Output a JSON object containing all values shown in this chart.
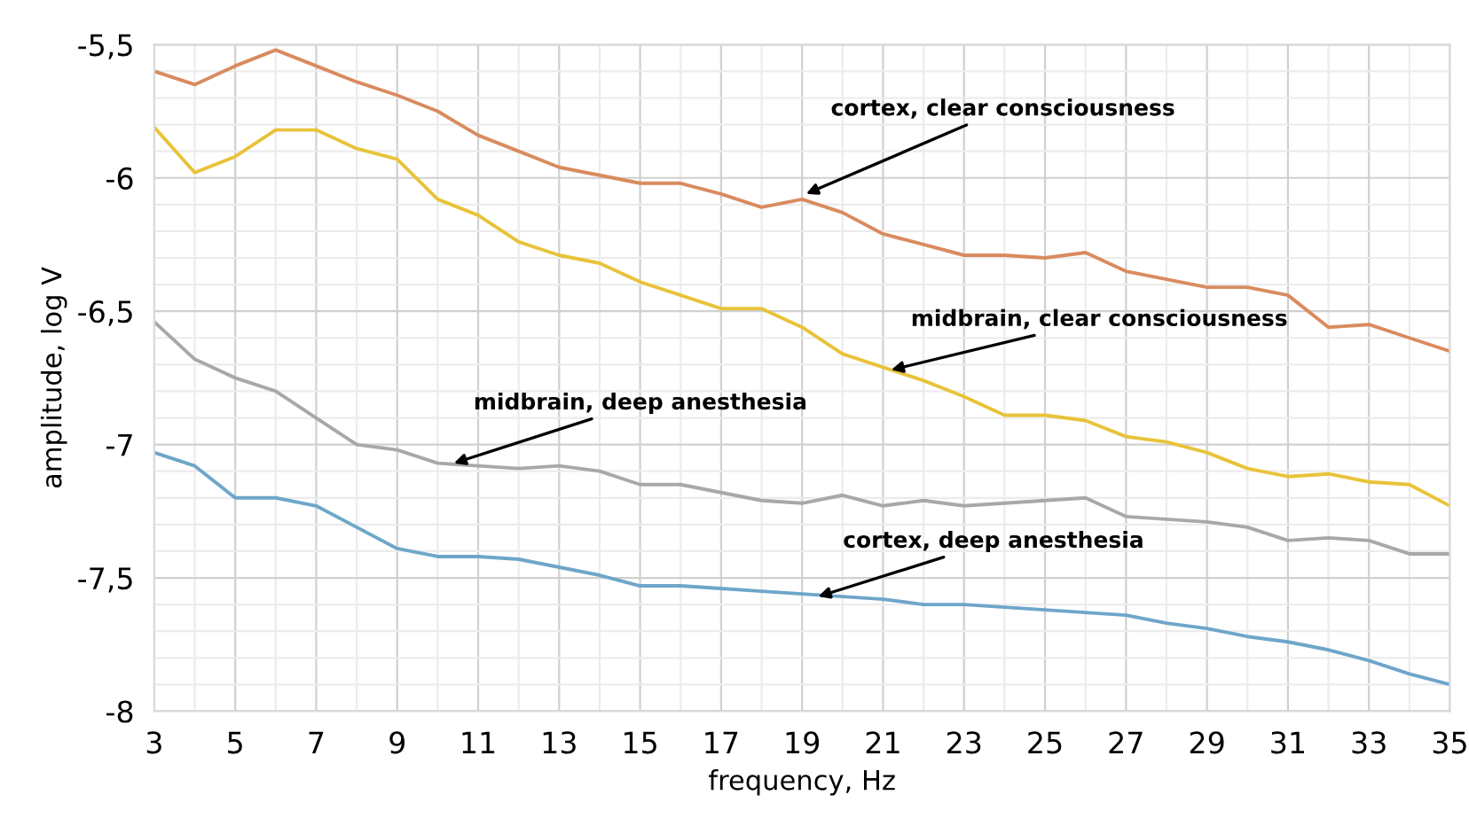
{
  "chart_data": {
    "type": "line",
    "xlabel": "frequency, Hz",
    "ylabel": "amplitude, log V",
    "x": [
      3,
      4,
      5,
      6,
      7,
      8,
      9,
      10,
      11,
      12,
      13,
      14,
      15,
      16,
      17,
      18,
      19,
      20,
      21,
      22,
      23,
      24,
      25,
      26,
      27,
      28,
      29,
      30,
      31,
      32,
      33,
      34,
      35
    ],
    "series": [
      {
        "color": "#d98b5f",
        "values": [
          -5.6,
          -5.65,
          -5.58,
          -5.52,
          -5.58,
          -5.64,
          -5.69,
          -5.75,
          -5.84,
          -5.9,
          -5.96,
          -5.99,
          -6.02,
          -6.02,
          -6.06,
          -6.11,
          -6.08,
          -6.13,
          -6.21,
          -6.25,
          -6.29,
          -6.29,
          -6.3,
          -6.28,
          -6.35,
          -6.38,
          -6.41,
          -6.41,
          -6.44,
          -6.56,
          -6.55,
          -6.6,
          -6.65
        ]
      },
      {
        "color": "#e8c33a",
        "values": [
          -5.81,
          -5.98,
          -5.92,
          -5.82,
          -5.82,
          -5.89,
          -5.93,
          -6.08,
          -6.14,
          -6.24,
          -6.29,
          -6.32,
          -6.39,
          -6.44,
          -6.49,
          -6.49,
          -6.56,
          -6.66,
          -6.71,
          -6.76,
          -6.82,
          -6.89,
          -6.89,
          -6.91,
          -6.97,
          -6.99,
          -7.03,
          -7.09,
          -7.12,
          -7.11,
          -7.14,
          -7.15,
          -7.23
        ]
      },
      {
        "color": "#a8a8a8",
        "values": [
          -6.54,
          -6.68,
          -6.75,
          -6.8,
          -6.9,
          -7.0,
          -7.02,
          -7.07,
          -7.08,
          -7.09,
          -7.08,
          -7.1,
          -7.15,
          -7.15,
          -7.18,
          -7.21,
          -7.22,
          -7.19,
          -7.23,
          -7.21,
          -7.23,
          -7.22,
          -7.21,
          -7.2,
          -7.27,
          -7.28,
          -7.29,
          -7.31,
          -7.36,
          -7.35,
          -7.36,
          -7.41,
          -7.41
        ]
      },
      {
        "color": "#6ea6c9",
        "values": [
          -7.03,
          -7.08,
          -7.2,
          -7.2,
          -7.23,
          -7.31,
          -7.39,
          -7.42,
          -7.42,
          -7.43,
          -7.46,
          -7.49,
          -7.53,
          -7.53,
          -7.54,
          -7.55,
          -7.56,
          -7.57,
          -7.58,
          -7.6,
          -7.6,
          -7.61,
          -7.62,
          -7.63,
          -7.64,
          -7.67,
          -7.69,
          -7.72,
          -7.74,
          -7.77,
          -7.81,
          -7.86,
          -7.9
        ]
      }
    ],
    "xlim": [
      3,
      35
    ],
    "ylim": [
      -8,
      -5.5
    ],
    "xticks": [
      3,
      {
        "value": 4,
        "label": null
      },
      5,
      {
        "value": 6,
        "label": null
      },
      7,
      {
        "value": 8,
        "label": null
      },
      9,
      {
        "value": 10,
        "label": null
      },
      11,
      {
        "value": 12,
        "label": null
      },
      13,
      {
        "value": 14,
        "label": null
      },
      15,
      {
        "value": 16,
        "label": null
      },
      17,
      {
        "value": 18,
        "label": null
      },
      19,
      {
        "value": 20,
        "label": null
      },
      21,
      {
        "value": 22,
        "label": null
      },
      23,
      {
        "value": 24,
        "label": null
      },
      25,
      {
        "value": 26,
        "label": null
      },
      27,
      {
        "value": 28,
        "label": null
      },
      29,
      {
        "value": 30,
        "label": null
      },
      31,
      {
        "value": 32,
        "label": null
      },
      33,
      {
        "value": 34,
        "label": null
      },
      35
    ],
    "yticks": [
      {
        "value": -8,
        "label": "-8"
      },
      {
        "value": -7.9,
        "label": null
      },
      {
        "value": -7.8,
        "label": null
      },
      {
        "value": -7.7,
        "label": null
      },
      {
        "value": -7.6,
        "label": null
      },
      {
        "value": -7.5,
        "label": "-7,5"
      },
      {
        "value": -7.4,
        "label": null
      },
      {
        "value": -7.3,
        "label": null
      },
      {
        "value": -7.2,
        "label": null
      },
      {
        "value": -7.1,
        "label": null
      },
      {
        "value": -7,
        "label": "-7"
      },
      {
        "value": -6.9,
        "label": null
      },
      {
        "value": -6.8,
        "label": null
      },
      {
        "value": -6.7,
        "label": null
      },
      {
        "value": -6.6,
        "label": null
      },
      {
        "value": -6.5,
        "label": "-6,5"
      },
      {
        "value": -6.4,
        "label": null
      },
      {
        "value": -6.3,
        "label": null
      },
      {
        "value": -6.2,
        "label": null
      },
      {
        "value": -6.1,
        "label": null
      },
      {
        "value": -6,
        "label": "-6"
      },
      {
        "value": -5.9,
        "label": null
      },
      {
        "value": -5.8,
        "label": null
      },
      {
        "value": -5.7,
        "label": null
      },
      {
        "value": -5.6,
        "label": null
      },
      {
        "value": -5.5,
        "label": "-5,5"
      }
    ],
    "grid": true,
    "legend": false,
    "marker": "none",
    "line_style": "solid",
    "annotations": [
      {
        "text": "cortex, clear consciousness",
        "x": 19.1,
        "y": -6.06
      },
      {
        "text": "midbrain, clear consciousness",
        "x": 21.2,
        "y": -6.72
      },
      {
        "text": "midbrain, deep anesthesia",
        "x": 10.4,
        "y": -7.07
      },
      {
        "text": "cortex, deep anesthesia",
        "x": 19.4,
        "y": -7.57
      }
    ]
  }
}
